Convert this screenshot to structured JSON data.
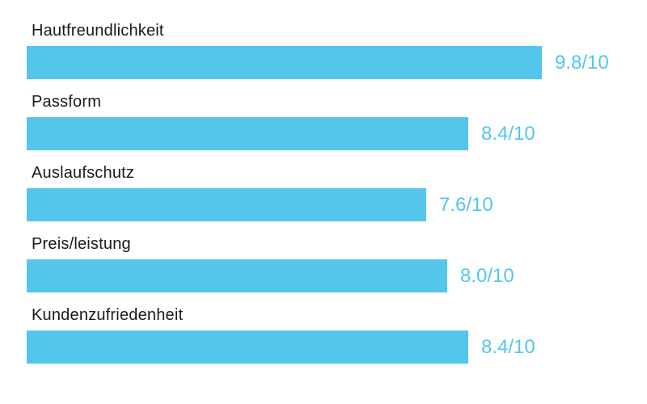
{
  "chart_data": {
    "type": "bar",
    "orientation": "horizontal",
    "title": "",
    "categories": [
      "Hautfreundlichkeit",
      "Passform",
      "Auslaufschutz",
      "Preis/leistung",
      "Kundenzufriedenheit"
    ],
    "values": [
      9.8,
      8.4,
      7.6,
      8.0,
      8.4
    ],
    "value_labels": [
      "9.8/10",
      "8.4/10",
      "7.6/10",
      "8.0/10",
      "8.4/10"
    ],
    "scale_max": 10,
    "grid": false,
    "legend": "none",
    "colors": {
      "bar": "#54c6ec",
      "value_text": "#54c6ec",
      "category_text": "#1a1a1a",
      "background": "#ffffff"
    }
  }
}
